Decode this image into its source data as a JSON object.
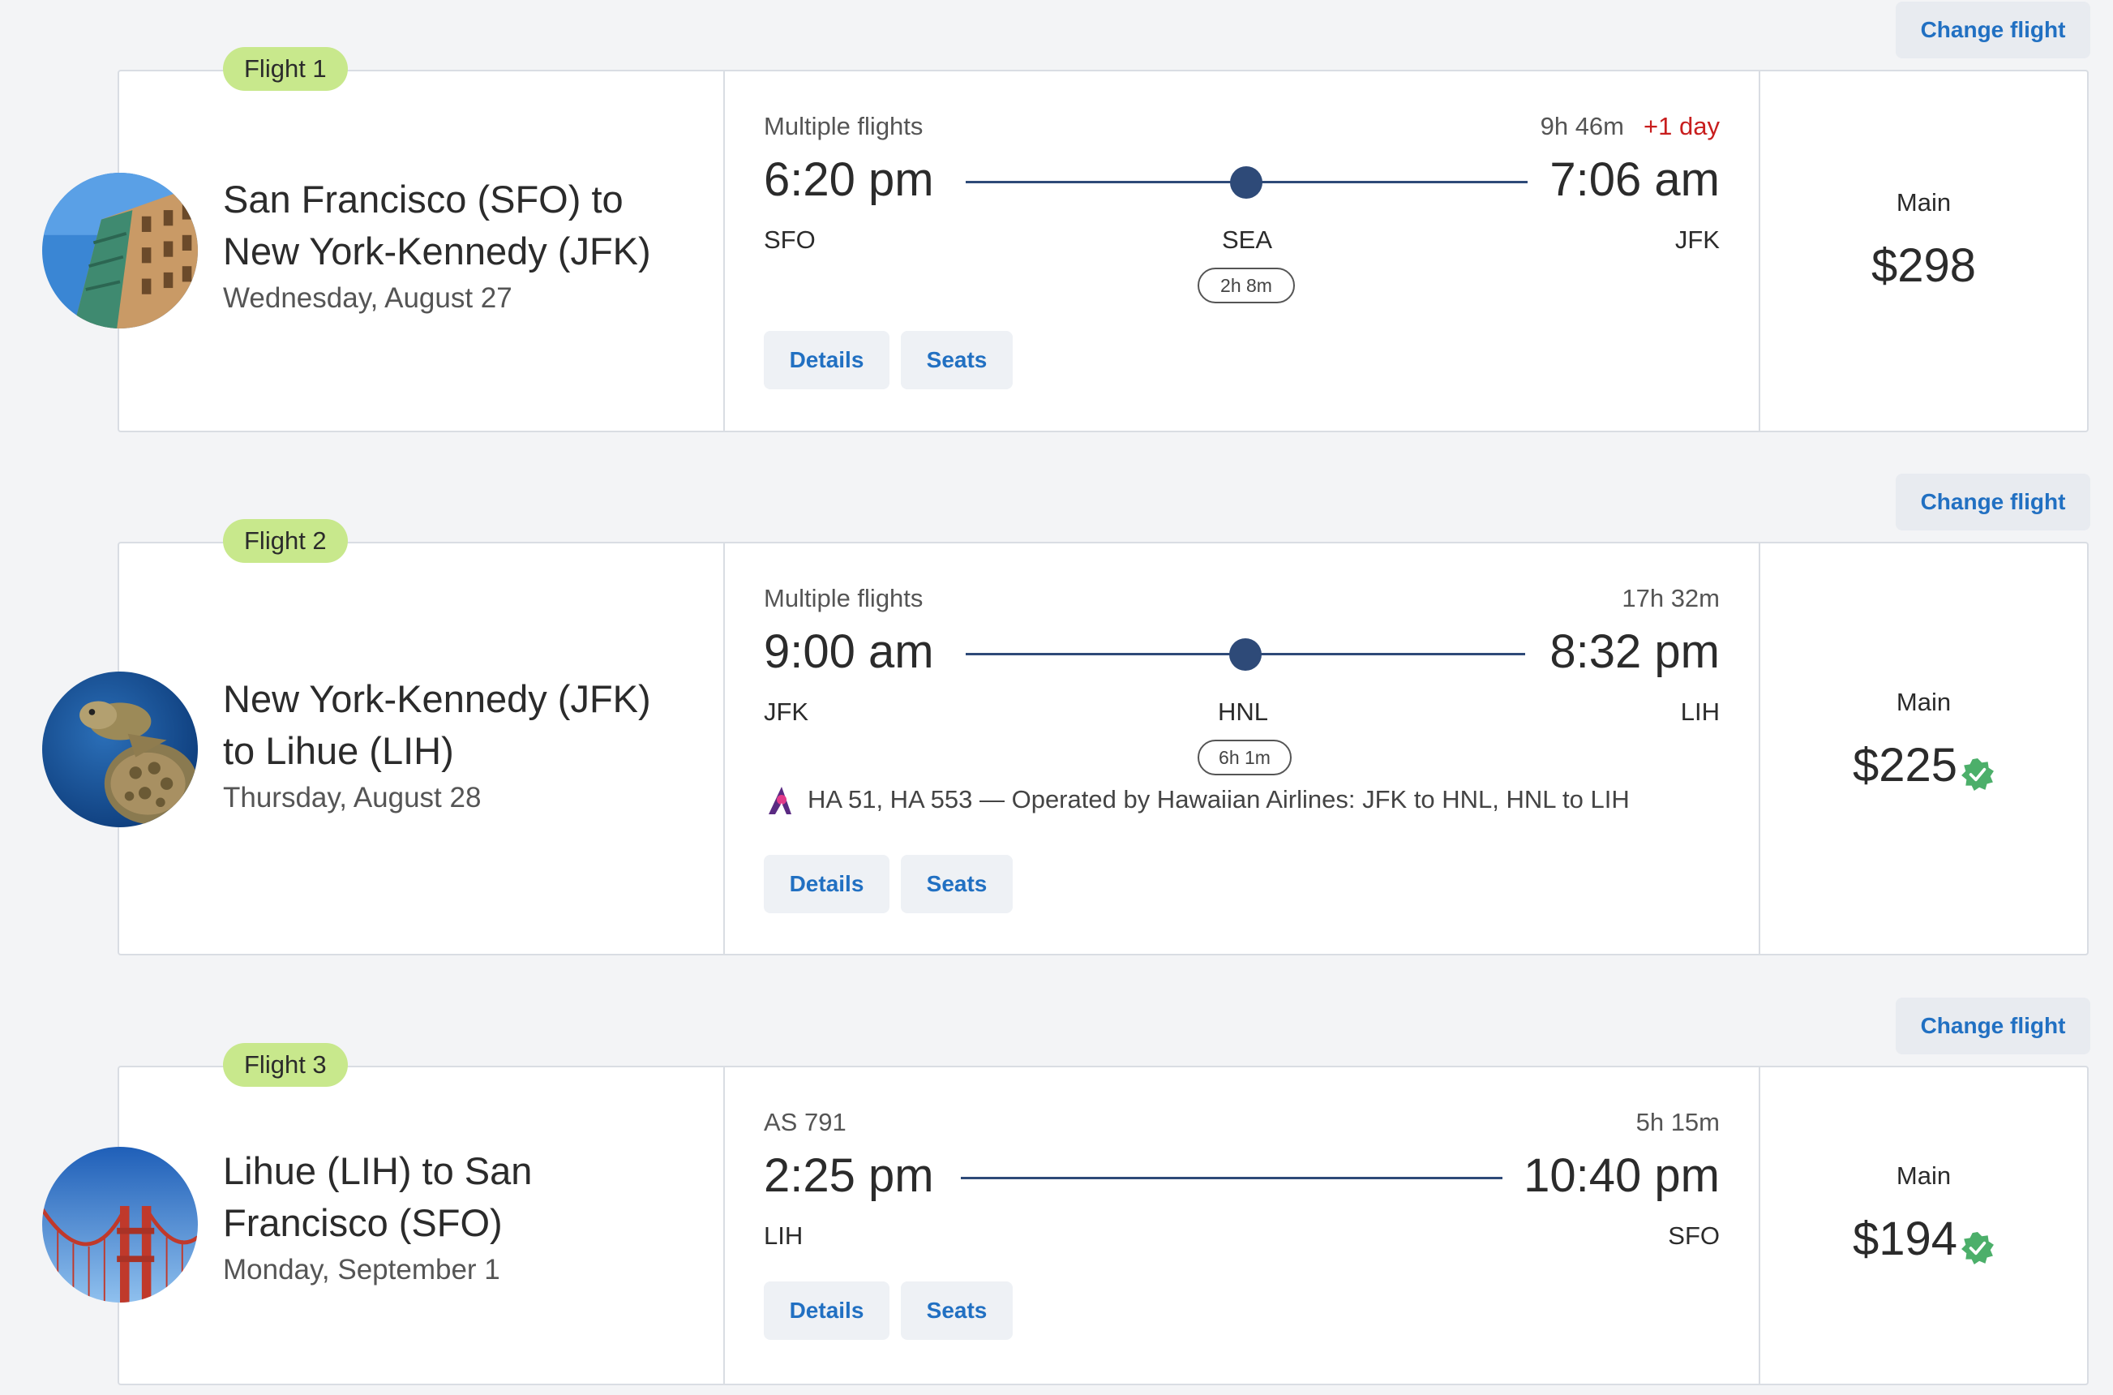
{
  "change_label": "Change flight",
  "details_label": "Details",
  "seats_label": "Seats",
  "fare_label": "Main",
  "colors": {
    "accent": "#2170c2",
    "tag": "#c8e88c",
    "route_line": "#2e4a78",
    "next_day": "#c81e1e",
    "badge": "#4caf6a"
  },
  "flights": [
    {
      "tag": "Flight 1",
      "route": "San Francisco (SFO) to New York-Kennedy (JFK)",
      "date": "Wednesday, August 27",
      "image": "city-building-photo",
      "subtitle": "Multiple flights",
      "duration": "9h 46m",
      "day_offset": "+1 day",
      "depart_time": "6:20 pm",
      "arrive_time": "7:06 am",
      "origin": "SFO",
      "stop": "SEA",
      "destination": "JFK",
      "layover": "2h 8m",
      "price": "$298",
      "price_badge": false
    },
    {
      "tag": "Flight 2",
      "route": "New York-Kennedy (JFK) to Lihue (LIH)",
      "date": "Thursday, August 28",
      "image": "sea-turtle-photo",
      "subtitle": "Multiple flights",
      "duration": "17h 32m",
      "day_offset": "",
      "depart_time": "9:00 am",
      "arrive_time": "8:32 pm",
      "origin": "JFK",
      "stop": "HNL",
      "destination": "LIH",
      "layover": "6h 1m",
      "operated": "HA 51, HA 553 — Operated by Hawaiian Airlines: JFK to HNL, HNL to LIH",
      "price": "$225",
      "price_badge": true
    },
    {
      "tag": "Flight 3",
      "route": "Lihue (LIH) to San Francisco (SFO)",
      "date": "Monday, September 1",
      "image": "golden-gate-bridge-photo",
      "subtitle": "AS 791",
      "duration": "5h 15m",
      "day_offset": "",
      "depart_time": "2:25 pm",
      "arrive_time": "10:40 pm",
      "origin": "LIH",
      "destination": "SFO",
      "price": "$194",
      "price_badge": true
    }
  ]
}
